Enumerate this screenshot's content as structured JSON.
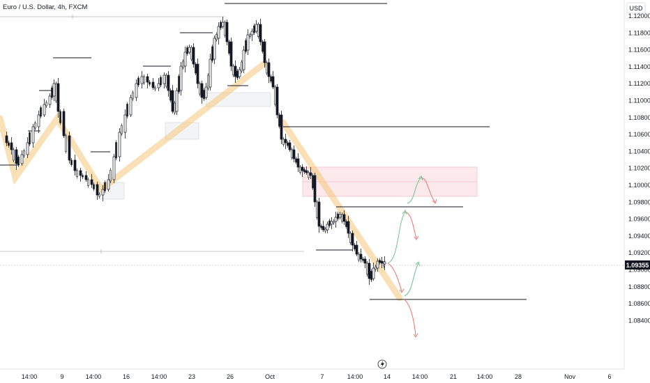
{
  "header": {
    "title": "Euro / U.S. Dollar, 4h, FXCM"
  },
  "chart_data": {
    "type": "candlestick",
    "title": "Euro / U.S. Dollar, 4h, FXCM",
    "currency": "USD",
    "y_ticks": [
      "1.12000",
      "1.11800",
      "1.11600",
      "1.11400",
      "1.11200",
      "1.11000",
      "1.10800",
      "1.10600",
      "1.10400",
      "1.10200",
      "1.10000",
      "1.09800",
      "1.09600",
      "1.09400",
      "1.09200",
      "1.09000",
      "1.08800",
      "1.08600",
      "1.08400"
    ],
    "ylim": [
      1.0828,
      1.1215
    ],
    "x_ticks": [
      "14:00",
      "9",
      "14:00",
      "16",
      "14:00",
      "23",
      "26",
      "Oct",
      "7",
      "14:00",
      "14",
      "14:00",
      "21",
      "14:00",
      "28",
      "Nov",
      "6"
    ],
    "current_price": "1.09355",
    "colors": {
      "up": "#ffffff",
      "down": "#131722",
      "wick": "#131722",
      "trend": "#f5c67a",
      "supply_zone": "#f8d7da",
      "green_path": "#6fbf8c",
      "red_path": "#e57373",
      "price_box": "#131722"
    }
  }
}
